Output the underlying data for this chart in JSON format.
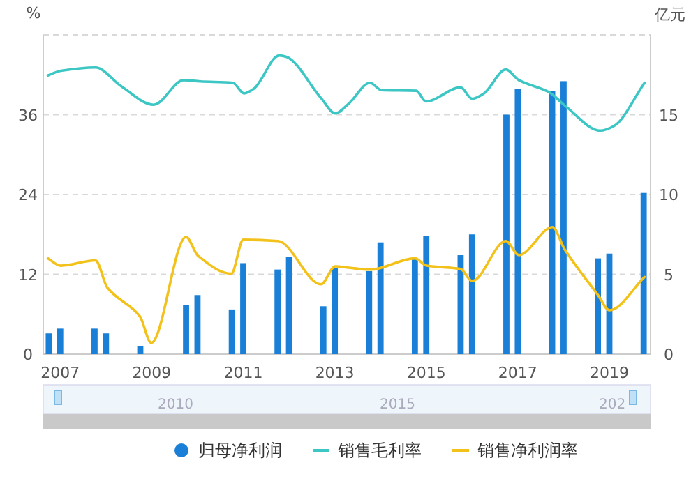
{
  "chart_data": {
    "type": "bar",
    "ylabel": "%",
    "y2label": "亿元",
    "xlim": [
      2006.63,
      2019.9
    ],
    "xticks": [
      2007,
      2009,
      2011,
      2013,
      2015,
      2017,
      2019
    ],
    "ylim": [
      0,
      48
    ],
    "yticks": [
      0,
      12,
      24,
      36,
      {
        "value": 48,
        "label": null
      }
    ],
    "y2lim": [
      0,
      20
    ],
    "y2ticks": [
      0,
      5,
      10,
      15
    ],
    "grid": "y",
    "legend": "bottom",
    "series": [
      {
        "name": "归母净利润",
        "axis": "y2",
        "color": "#1a7fd6",
        "x": [
          2006.75,
          2007.0,
          2007.75,
          2008.0,
          2008.75,
          2009.75,
          2010.0,
          2010.75,
          2011.0,
          2011.75,
          2012.0,
          2012.75,
          2013.0,
          2013.75,
          2014.0,
          2014.75,
          2015.0,
          2015.75,
          2016.0,
          2016.75,
          2017.0,
          2017.75,
          2018.0,
          2018.75,
          2019.0,
          2019.75
        ],
        "values": [
          1.3,
          1.6,
          1.6,
          1.3,
          0.5,
          3.1,
          3.7,
          2.8,
          5.7,
          5.3,
          6.1,
          3.0,
          5.4,
          5.2,
          7.0,
          6.0,
          7.4,
          6.2,
          7.5,
          15.0,
          16.6,
          16.5,
          17.1,
          6.0,
          6.3,
          10.1
        ]
      },
      {
        "name": "销售毛利率",
        "type": "line",
        "color": "#3cc6c4",
        "x": [
          2006.73,
          2007.01,
          2007.77,
          2008.33,
          2009.04,
          2009.7,
          2010.06,
          2010.77,
          2011.02,
          2011.23,
          2011.79,
          2011.94,
          2012.7,
          2013.01,
          2013.31,
          2013.77,
          2014.02,
          2014.78,
          2014.99,
          2015.75,
          2016.0,
          2016.26,
          2016.74,
          2017.02,
          2017.68,
          2018.04,
          2018.8,
          2019.1,
          2019.77
        ],
        "values": [
          41.9,
          42.6,
          43.1,
          40.3,
          37.5,
          41.2,
          41.0,
          40.8,
          39.2,
          39.9,
          44.9,
          44.7,
          38.5,
          36.2,
          37.7,
          40.8,
          39.7,
          39.6,
          38.0,
          40.1,
          38.4,
          39.2,
          42.8,
          41.2,
          39.4,
          37.3,
          33.6,
          34.3,
          40.8
        ]
      },
      {
        "name": "销售净利润率",
        "type": "line",
        "color": "#f2c21a",
        "x": [
          2006.73,
          2007.01,
          2007.77,
          2008.03,
          2008.74,
          2008.99,
          2009.75,
          2010.01,
          2010.74,
          2011.0,
          2011.76,
          2012.7,
          2013.01,
          2013.31,
          2013.77,
          2014.75,
          2015.01,
          2015.75,
          2016.0,
          2016.74,
          2017.02,
          2017.76,
          2018.02,
          2018.75,
          2019.0,
          2019.77
        ],
        "values": [
          14.4,
          13.3,
          14.1,
          10.0,
          5.7,
          1.7,
          17.6,
          14.8,
          12.1,
          17.2,
          17.0,
          10.5,
          13.2,
          13.0,
          12.7,
          14.4,
          13.3,
          12.8,
          11.0,
          17.0,
          14.9,
          19.1,
          15.8,
          8.9,
          6.6,
          11.6
        ]
      }
    ],
    "annotations": [
      "2010",
      "2015",
      "202"
    ]
  }
}
